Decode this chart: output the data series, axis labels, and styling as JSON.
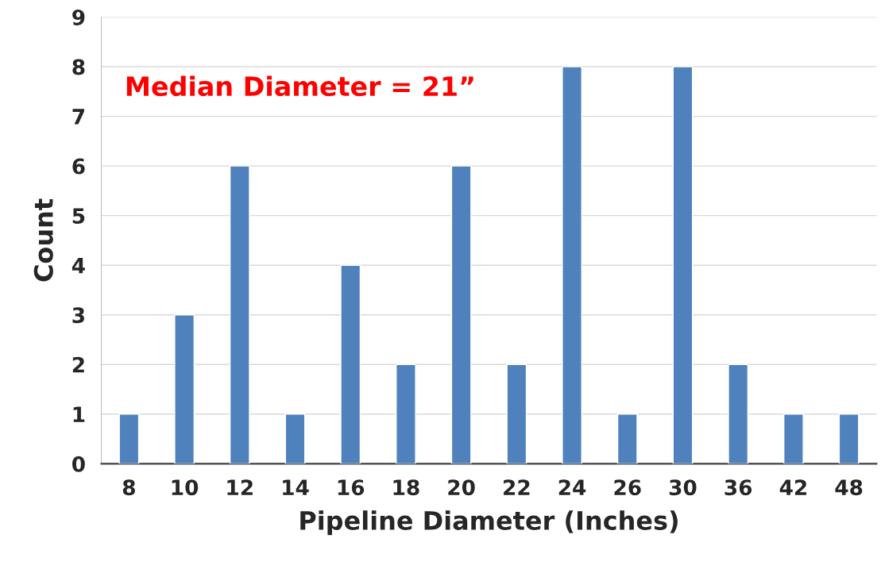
{
  "chart_data": {
    "type": "bar",
    "xlabel": "Pipeline Diameter (Inches)",
    "ylabel": "Count",
    "categories": [
      "8",
      "10",
      "12",
      "14",
      "16",
      "18",
      "20",
      "22",
      "24",
      "26",
      "30",
      "36",
      "42",
      "48"
    ],
    "values": [
      1,
      3,
      6,
      1,
      4,
      2,
      6,
      2,
      8,
      1,
      8,
      2,
      1,
      1
    ],
    "color": "#4f81bd",
    "ylim": [
      0,
      9
    ],
    "yticks": [
      0,
      1,
      2,
      3,
      4,
      5,
      6,
      7,
      8,
      9
    ],
    "grid": "y",
    "annotations": [
      "Median Diameter = 21”"
    ]
  }
}
